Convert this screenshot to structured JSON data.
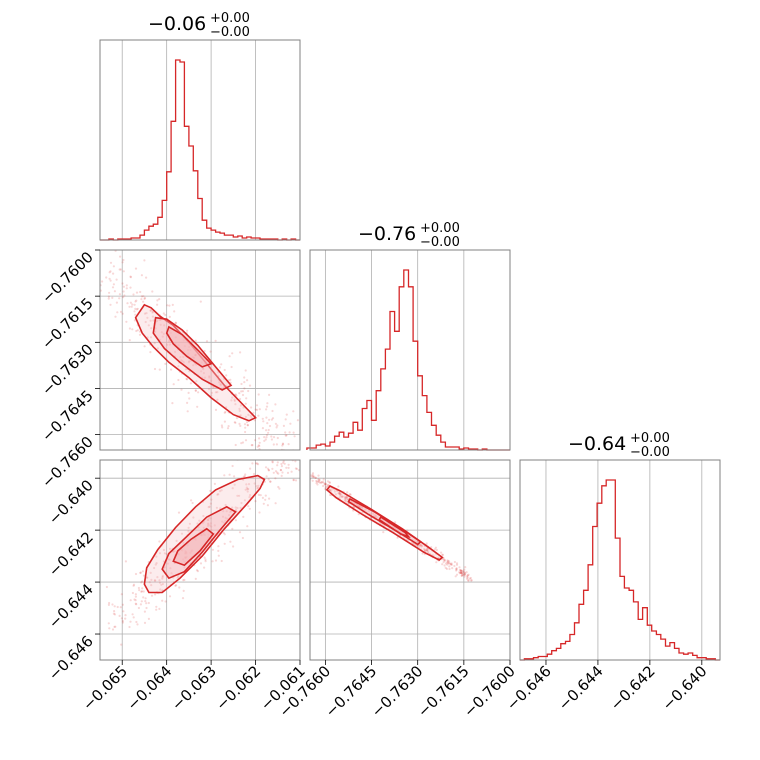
{
  "chart_data": {
    "type": "corner",
    "color": "#d62728",
    "fill_color": "#f4b4b8",
    "grid": true,
    "diagonal_titles": [
      {
        "value": "−0.06",
        "upper": "+0.00",
        "lower": "−0.00"
      },
      {
        "value": "−0.76",
        "upper": "+0.00",
        "lower": "−0.00"
      },
      {
        "value": "−0.64",
        "upper": "+0.00",
        "lower": "−0.00"
      }
    ],
    "axes": [
      {
        "range": [
          -0.0655,
          -0.061
        ],
        "ticks": [
          -0.065,
          -0.064,
          -0.063,
          -0.062,
          -0.061
        ],
        "tick_labels": [
          "−0.065",
          "−0.064",
          "−0.063",
          "−0.062",
          "−0.061"
        ]
      },
      {
        "range": [
          -0.7665,
          -0.76
        ],
        "ticks": [
          -0.766,
          -0.7645,
          -0.763,
          -0.7615,
          -0.76
        ],
        "tick_labels": [
          "−0.7660",
          "−0.7645",
          "−0.7630",
          "−0.7615",
          "−0.7600"
        ]
      },
      {
        "range": [
          -0.647,
          -0.6393
        ],
        "ticks": [
          -0.646,
          -0.644,
          -0.642,
          -0.64
        ],
        "tick_labels": [
          "−0.646",
          "−0.644",
          "−0.642",
          "−0.640"
        ]
      }
    ],
    "histograms": [
      {
        "bin_edges": [
          -0.0655,
          -0.0654,
          -0.0653,
          -0.0652,
          -0.0651,
          -0.065,
          -0.0649,
          -0.0648,
          -0.0647,
          -0.0646,
          -0.0645,
          -0.0644,
          -0.0643,
          -0.0642,
          -0.0641,
          -0.064,
          -0.0639,
          -0.0638,
          -0.0637,
          -0.0636,
          -0.0635,
          -0.0634,
          -0.0633,
          -0.0632,
          -0.0631,
          -0.063,
          -0.0629,
          -0.0628,
          -0.0627,
          -0.0626,
          -0.0625,
          -0.0624,
          -0.0623,
          -0.0622,
          -0.0621,
          -0.062,
          -0.0619,
          -0.0618,
          -0.0617,
          -0.0616,
          -0.0615,
          -0.0614,
          -0.0613,
          -0.0612,
          -0.0611,
          -0.061
        ],
        "counts": [
          0,
          0,
          1,
          0,
          1,
          1,
          1,
          2,
          2,
          5,
          10,
          14,
          16,
          23,
          40,
          69,
          120,
          182,
          180,
          115,
          95,
          70,
          42,
          20,
          12,
          10,
          8,
          7,
          5,
          5,
          3,
          4,
          2,
          3,
          2,
          2,
          1,
          1,
          1,
          1,
          0,
          1,
          0,
          1,
          0
        ]
      },
      {
        "bin_edges": [
          -0.7666,
          -0.76645,
          -0.7663,
          -0.76615,
          -0.766,
          -0.76585,
          -0.7657,
          -0.76555,
          -0.7654,
          -0.76525,
          -0.7651,
          -0.76495,
          -0.7648,
          -0.76465,
          -0.7645,
          -0.76435,
          -0.7642,
          -0.76405,
          -0.7639,
          -0.76375,
          -0.7636,
          -0.76345,
          -0.7633,
          -0.76315,
          -0.763,
          -0.76285,
          -0.7627,
          -0.76255,
          -0.7624,
          -0.76225,
          -0.7621,
          -0.76195,
          -0.7618,
          -0.76165,
          -0.7615,
          -0.76135,
          -0.7612,
          -0.76105,
          -0.7609,
          -0.76075,
          -0.7606,
          -0.76045,
          -0.7603,
          -0.76015,
          -0.76
        ],
        "counts": [
          2,
          2,
          5,
          6,
          4,
          8,
          14,
          18,
          13,
          17,
          28,
          20,
          42,
          50,
          30,
          60,
          82,
          102,
          140,
          120,
          165,
          182,
          165,
          110,
          75,
          55,
          38,
          25,
          15,
          8,
          3,
          3,
          3,
          1,
          2,
          1,
          1,
          0,
          1,
          0,
          0,
          0,
          0,
          0
        ]
      },
      {
        "bin_edges": [
          -0.647,
          -0.64683,
          -0.64665,
          -0.64648,
          -0.6463,
          -0.64613,
          -0.64595,
          -0.64578,
          -0.6456,
          -0.64543,
          -0.64525,
          -0.64508,
          -0.6449,
          -0.64473,
          -0.64455,
          -0.64438,
          -0.6442,
          -0.64403,
          -0.64385,
          -0.64368,
          -0.6435,
          -0.64333,
          -0.64315,
          -0.64298,
          -0.6428,
          -0.64263,
          -0.64245,
          -0.64228,
          -0.6421,
          -0.64193,
          -0.64175,
          -0.64158,
          -0.6414,
          -0.64123,
          -0.64105,
          -0.64088,
          -0.6407,
          -0.64053,
          -0.64035,
          -0.64018,
          -0.64,
          -0.63983,
          -0.63965,
          -0.63948,
          -0.6393
        ],
        "counts": [
          0,
          1,
          1,
          2,
          3,
          3,
          5,
          8,
          10,
          14,
          16,
          22,
          32,
          48,
          60,
          82,
          115,
          135,
          150,
          155,
          155,
          105,
          72,
          62,
          60,
          50,
          35,
          45,
          30,
          25,
          22,
          18,
          12,
          15,
          10,
          6,
          5,
          6,
          4,
          2,
          2,
          1,
          1,
          0
        ]
      }
    ],
    "panels_2d": [
      {
        "x_param": 0,
        "y_param": 1,
        "correlation": "negative",
        "contours": [
          [
            [
              -0.0645,
              -0.76178
            ],
            [
              -0.06435,
              -0.76188
            ],
            [
              -0.06415,
              -0.76215
            ],
            [
              -0.06385,
              -0.76245
            ],
            [
              -0.0635,
              -0.763
            ],
            [
              -0.0631,
              -0.7637
            ],
            [
              -0.0627,
              -0.7644
            ],
            [
              -0.0622,
              -0.76515
            ],
            [
              -0.062,
              -0.76545
            ],
            [
              -0.06215,
              -0.76555
            ],
            [
              -0.0625,
              -0.76535
            ],
            [
              -0.063,
              -0.7648
            ],
            [
              -0.0635,
              -0.76415
            ],
            [
              -0.06395,
              -0.76365
            ],
            [
              -0.0643,
              -0.76315
            ],
            [
              -0.06455,
              -0.7627
            ],
            [
              -0.0647,
              -0.7622
            ]
          ],
          [
            [
              -0.06425,
              -0.7622
            ],
            [
              -0.064,
              -0.76225
            ],
            [
              -0.06365,
              -0.7626
            ],
            [
              -0.0633,
              -0.7631
            ],
            [
              -0.0629,
              -0.7638
            ],
            [
              -0.06255,
              -0.7644
            ],
            [
              -0.06275,
              -0.76455
            ],
            [
              -0.0632,
              -0.7642
            ],
            [
              -0.0637,
              -0.76365
            ],
            [
              -0.06405,
              -0.7632
            ],
            [
              -0.0643,
              -0.7627
            ]
          ],
          [
            [
              -0.06395,
              -0.7625
            ],
            [
              -0.06365,
              -0.76275
            ],
            [
              -0.0633,
              -0.76325
            ],
            [
              -0.063,
              -0.7637
            ],
            [
              -0.0632,
              -0.7638
            ],
            [
              -0.06355,
              -0.76345
            ],
            [
              -0.06385,
              -0.76305
            ],
            [
              -0.064,
              -0.7627
            ]
          ]
        ]
      },
      {
        "x_param": 0,
        "y_param": 2,
        "correlation": "positive",
        "contours": [
          [
            [
              -0.0645,
              -0.64408
            ],
            [
              -0.0644,
              -0.6444
            ],
            [
              -0.0641,
              -0.6444
            ],
            [
              -0.0637,
              -0.64385
            ],
            [
              -0.0632,
              -0.643
            ],
            [
              -0.0627,
              -0.64195
            ],
            [
              -0.0622,
              -0.641
            ],
            [
              -0.0619,
              -0.6404
            ],
            [
              -0.0618,
              -0.64005
            ],
            [
              -0.06195,
              -0.6399
            ],
            [
              -0.0624,
              -0.64005
            ],
            [
              -0.0629,
              -0.64045
            ],
            [
              -0.06335,
              -0.6411
            ],
            [
              -0.0638,
              -0.6419
            ],
            [
              -0.0642,
              -0.64275
            ],
            [
              -0.06445,
              -0.64345
            ]
          ],
          [
            [
              -0.0641,
              -0.6435
            ],
            [
              -0.06395,
              -0.64385
            ],
            [
              -0.0636,
              -0.6436
            ],
            [
              -0.0632,
              -0.64285
            ],
            [
              -0.0628,
              -0.642
            ],
            [
              -0.06245,
              -0.6413
            ],
            [
              -0.06265,
              -0.6411
            ],
            [
              -0.0631,
              -0.6415
            ],
            [
              -0.06355,
              -0.64225
            ],
            [
              -0.06395,
              -0.6429
            ]
          ],
          [
            [
              -0.06385,
              -0.6432
            ],
            [
              -0.0636,
              -0.64335
            ],
            [
              -0.06325,
              -0.6428
            ],
            [
              -0.06295,
              -0.64215
            ],
            [
              -0.0631,
              -0.64195
            ],
            [
              -0.06345,
              -0.64235
            ],
            [
              -0.06375,
              -0.6428
            ]
          ]
        ]
      },
      {
        "x_param": 1,
        "y_param": 2,
        "correlation": "negative",
        "contours": [
          [
            [
              -0.76585,
              -0.6403
            ],
            [
              -0.7655,
              -0.6405
            ],
            [
              -0.7645,
              -0.6412
            ],
            [
              -0.7635,
              -0.64195
            ],
            [
              -0.7626,
              -0.6427
            ],
            [
              -0.7622,
              -0.64305
            ],
            [
              -0.7623,
              -0.64315
            ],
            [
              -0.7628,
              -0.64285
            ],
            [
              -0.7638,
              -0.6421
            ],
            [
              -0.7648,
              -0.6414
            ],
            [
              -0.76565,
              -0.64075
            ],
            [
              -0.76595,
              -0.64045
            ]
          ],
          [
            [
              -0.7652,
              -0.6408
            ],
            [
              -0.7644,
              -0.6413
            ],
            [
              -0.7634,
              -0.64205
            ],
            [
              -0.7629,
              -0.64245
            ],
            [
              -0.763,
              -0.64255
            ],
            [
              -0.7636,
              -0.6421
            ],
            [
              -0.7646,
              -0.6414
            ],
            [
              -0.76525,
              -0.6409
            ]
          ],
          [
            [
              -0.7642,
              -0.6415
            ],
            [
              -0.7634,
              -0.6421
            ],
            [
              -0.7633,
              -0.64225
            ],
            [
              -0.76355,
              -0.64215
            ],
            [
              -0.76425,
              -0.6416
            ]
          ]
        ]
      }
    ]
  }
}
